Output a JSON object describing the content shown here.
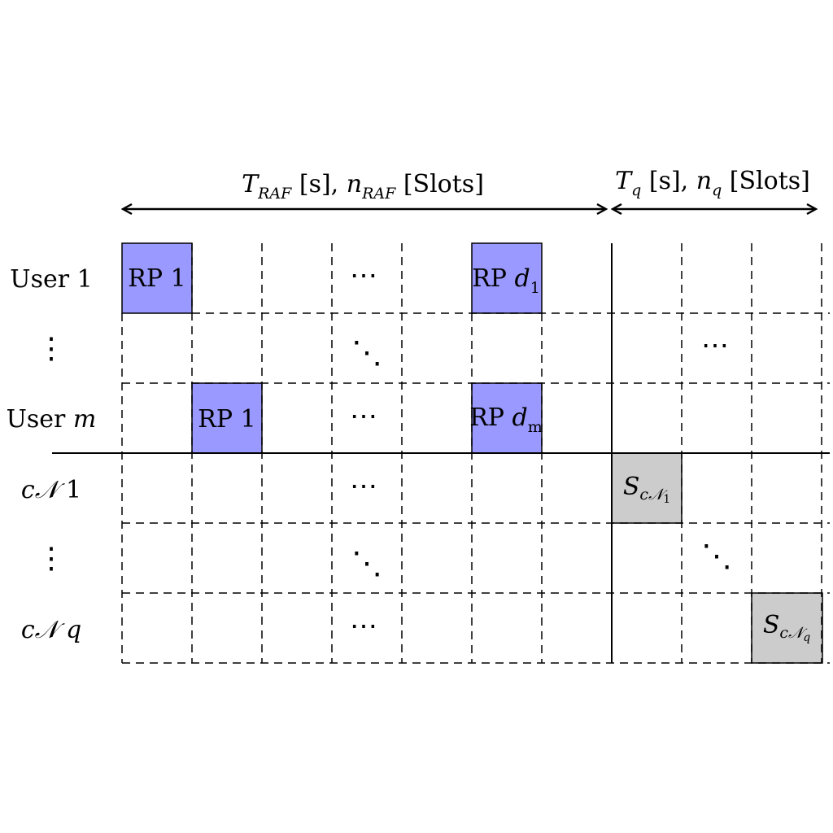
{
  "header": {
    "raf_T": "T",
    "raf_T_sub": "RAF",
    "raf_mid": " [s], ",
    "raf_n": "n",
    "raf_n_sub": "RAF",
    "raf_end": " [Slots]",
    "q_T": "T",
    "q_T_sub": "q",
    "q_mid": " [s], ",
    "q_n": "n",
    "q_n_sub": "q",
    "q_end": " [Slots]"
  },
  "rows": {
    "user1": "User 1",
    "user_m_text": "User ",
    "user_m_var": "m",
    "cn1_c": "c",
    "cn1_N": "𝒩",
    "cn1_idx": " 1",
    "cnq_c": "c",
    "cnq_N": "𝒩",
    "cnq_idx": " q",
    "vdots": "⋮"
  },
  "cells": {
    "rp1_user1": "RP 1",
    "rpd1_text": "RP ",
    "rpd1_var": "d",
    "rpd1_sub": "1",
    "rp1_userm": "RP 1",
    "rpdm_text": "RP ",
    "rpdm_var": "d",
    "rpdm_sub": "m",
    "s1_main": "S",
    "s1_sub": "c𝒩",
    "s1_subsub": "1",
    "sq_main": "S",
    "sq_sub": "c𝒩",
    "sq_subsub": "q",
    "hdots": "⋯",
    "ddots": "⋱"
  },
  "colors": {
    "rp_fill": "#9999ff",
    "s_fill": "#cccccc",
    "line": "#000000"
  }
}
